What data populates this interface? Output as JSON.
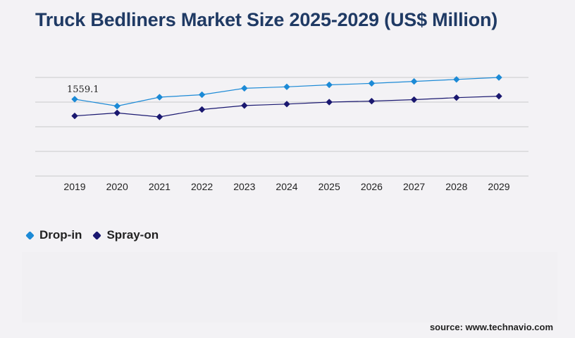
{
  "title": "Truck Bedliners Market Size 2025-2029 (US$ Million)",
  "source": "source: www.technavio.com",
  "chart_data": {
    "type": "line",
    "title": "Truck Bedliners Market Size 2025-2029 (US$ Million)",
    "x": [
      "2019",
      "2020",
      "2021",
      "2022",
      "2023",
      "2024",
      "2025",
      "2026",
      "2027",
      "2028",
      "2029"
    ],
    "series": [
      {
        "name": "Drop-in",
        "color": "#1c8ad6",
        "values": [
          1559.1,
          1420,
          1600,
          1650,
          1780,
          1810,
          1850,
          1880,
          1920,
          1960,
          2000
        ]
      },
      {
        "name": "Spray-on",
        "color": "#1a1870",
        "values": [
          1220,
          1280,
          1200,
          1350,
          1430,
          1460,
          1500,
          1520,
          1550,
          1590,
          1620
        ]
      }
    ],
    "annotations": [
      {
        "series": "Drop-in",
        "x": "2019",
        "text": "1559.1"
      }
    ],
    "ylim": [
      0,
      2000
    ],
    "grid": true,
    "yticks_shown": false,
    "legend_position": "bottom-left"
  }
}
